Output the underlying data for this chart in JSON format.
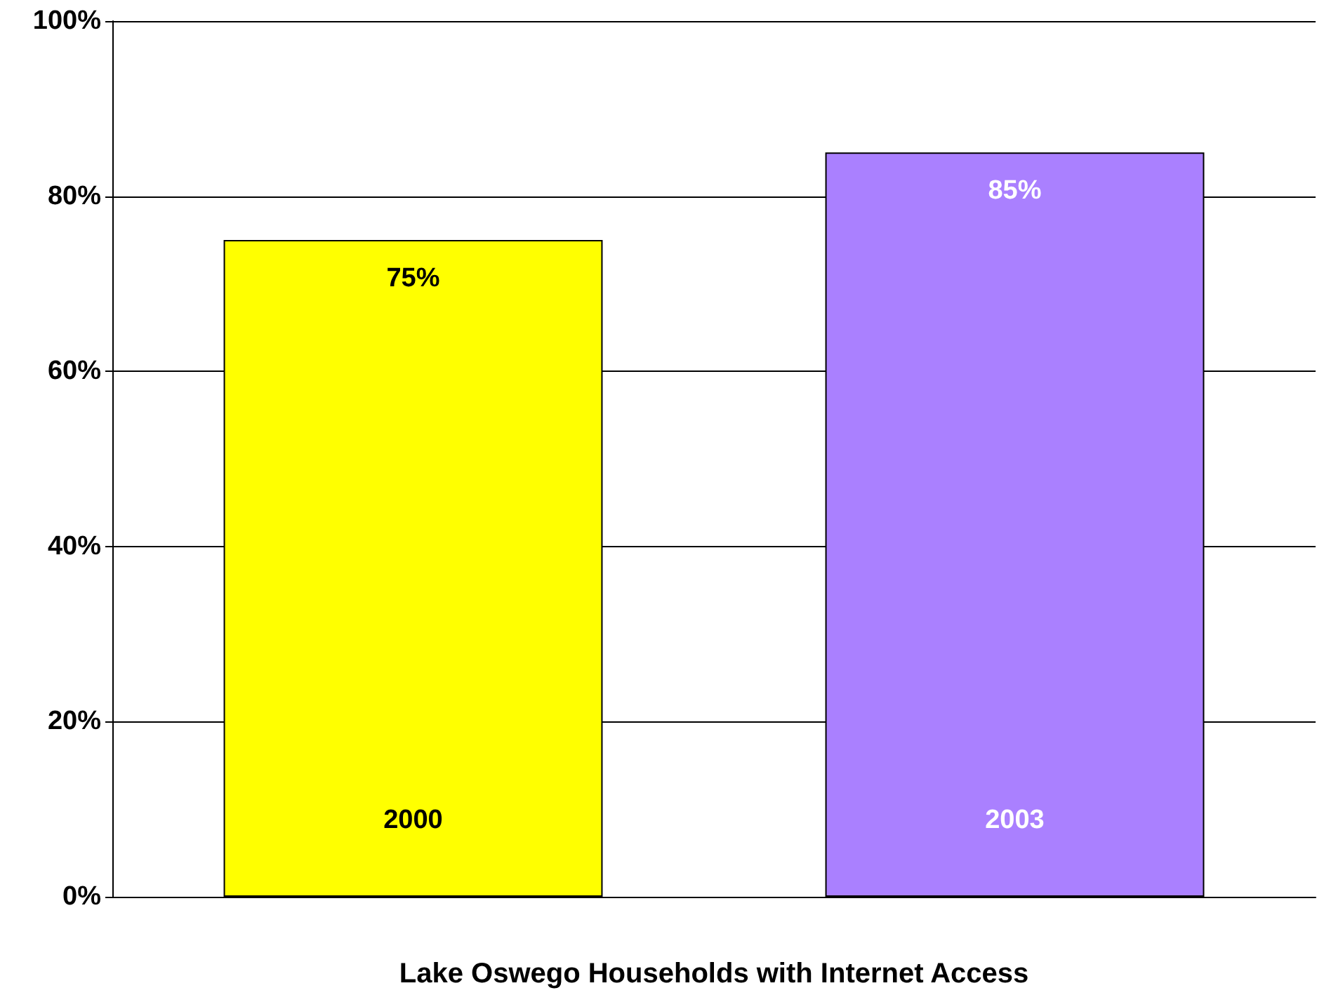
{
  "chart_data": {
    "type": "bar",
    "xlabel": "Lake Oswego Households with Internet Access",
    "categories": [
      "2000",
      "2003"
    ],
    "values": [
      75,
      85
    ],
    "colors": [
      "#ffff00",
      "#aa80ff"
    ],
    "value_labels": [
      "75%",
      "85%"
    ],
    "ylim": [
      0,
      100
    ],
    "yticks": [
      {
        "value": 0,
        "label": "0%"
      },
      {
        "value": 20,
        "label": "20%"
      },
      {
        "value": 40,
        "label": "40%"
      },
      {
        "value": 60,
        "label": "60%"
      },
      {
        "value": 80,
        "label": "80%"
      },
      {
        "value": 100,
        "label": "100%"
      }
    ],
    "grid": "y"
  }
}
